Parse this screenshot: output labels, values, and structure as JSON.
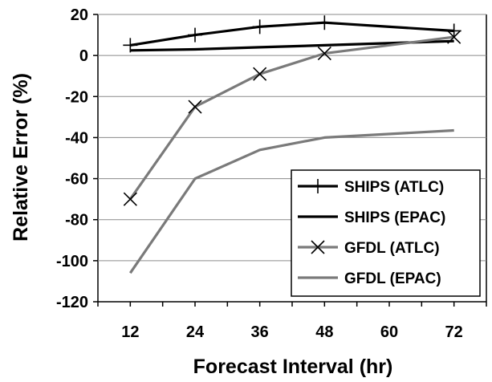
{
  "chart_data": {
    "type": "line",
    "title": "",
    "xlabel": "Forecast Interval (hr)",
    "ylabel": "Relative Error (%)",
    "x": [
      12,
      24,
      36,
      48,
      60,
      72
    ],
    "x_ticks": [
      "12",
      "24",
      "36",
      "48",
      "60",
      "72"
    ],
    "ylim": [
      -120,
      20
    ],
    "y_ticks": [
      20,
      0,
      -20,
      -40,
      -60,
      -80,
      -100,
      -120
    ],
    "grid": "horizontal",
    "legend_position": "bottom-right",
    "series": [
      {
        "name": "SHIPS (ATLC)",
        "x": [
          12,
          24,
          36,
          48,
          72
        ],
        "values": [
          5,
          10,
          14,
          16,
          12
        ],
        "color": "#000000",
        "marker": "plus"
      },
      {
        "name": "SHIPS (EPAC)",
        "x": [
          12,
          24,
          36,
          48,
          72
        ],
        "values": [
          2.5,
          3,
          4,
          5,
          7
        ],
        "color": "#000000",
        "marker": "none"
      },
      {
        "name": "GFDL (ATLC)",
        "x": [
          12,
          24,
          36,
          48,
          72
        ],
        "values": [
          -70,
          -25,
          -9,
          1,
          9
        ],
        "color": "#7a7a7a",
        "marker": "x"
      },
      {
        "name": "GFDL (EPAC)",
        "x": [
          12,
          24,
          36,
          48,
          72
        ],
        "values": [
          -106,
          -60,
          -46,
          -40,
          -36.5
        ],
        "color": "#7a7a7a",
        "marker": "none"
      }
    ]
  }
}
